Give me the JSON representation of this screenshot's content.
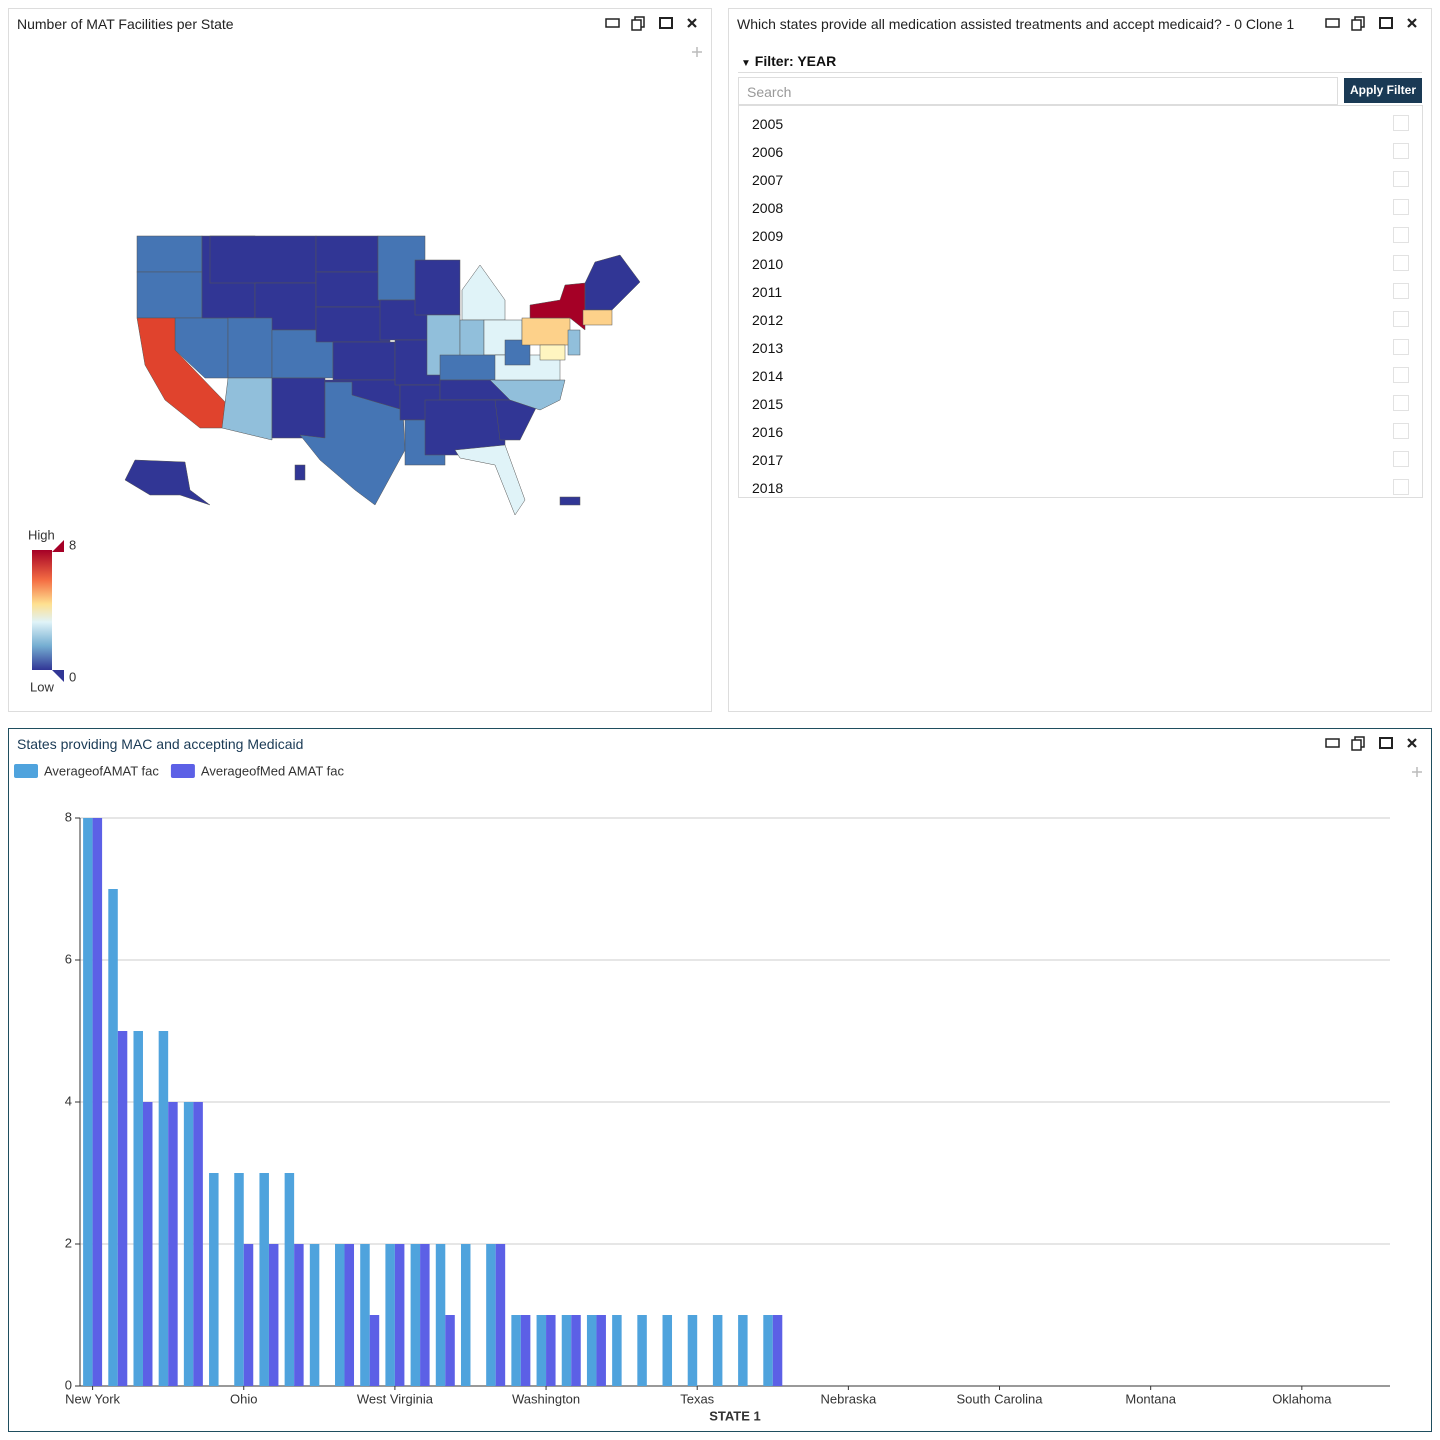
{
  "map_panel": {
    "title": "Number of MAT Facilities per State",
    "legend": {
      "high": "High",
      "max": "8",
      "low": "Low",
      "min": "0"
    }
  },
  "filter_panel": {
    "title": "Which states provide all medication assisted treatments and accept medicaid? - 0 Clone 1",
    "filter_label": "Filter: YEAR",
    "search_placeholder": "Search",
    "button": "Apply Filter",
    "years": [
      2005,
      2006,
      2007,
      2008,
      2009,
      2010,
      2011,
      2012,
      2013,
      2014,
      2015,
      2016,
      2017,
      2018
    ]
  },
  "chart_data": {
    "type": "bar",
    "title": "States providing MAC and accepting Medicaid",
    "x_label": "STATE 1",
    "categories": [
      "New York",
      null,
      null,
      null,
      null,
      null,
      "Ohio",
      null,
      null,
      null,
      null,
      null,
      "West Virginia",
      null,
      null,
      null,
      null,
      null,
      "Washington",
      null,
      null,
      null,
      null,
      null,
      "Texas",
      null,
      null,
      null,
      null,
      null,
      "Nebraska",
      null,
      null,
      null,
      null,
      null,
      "South Carolina",
      null,
      null,
      null,
      null,
      null,
      "Montana",
      null,
      null,
      null,
      null,
      null,
      "Oklahoma",
      null,
      null,
      null
    ],
    "series": [
      {
        "name": "AverageofAMAT fac",
        "color": "#4fa3dd",
        "values": [
          8,
          7,
          5,
          5,
          4,
          3,
          3,
          3,
          3,
          2,
          2,
          2,
          2,
          2,
          2,
          2,
          2,
          1,
          1,
          1,
          1,
          1,
          1,
          1,
          1,
          1,
          1,
          1,
          null,
          null,
          null,
          null,
          null,
          null,
          null,
          null,
          null,
          null,
          null,
          null,
          null,
          null,
          null,
          null,
          null,
          null,
          null,
          null,
          null,
          null,
          null,
          null
        ]
      },
      {
        "name": "AverageofMed AMAT fac",
        "color": "#5c60e6",
        "values": [
          8,
          5,
          4,
          4,
          4,
          null,
          2,
          2,
          2,
          null,
          2,
          1,
          2,
          2,
          1,
          null,
          2,
          1,
          1,
          1,
          1,
          null,
          null,
          null,
          null,
          null,
          null,
          1,
          null,
          null,
          null,
          null,
          null,
          null,
          null,
          null,
          null,
          null,
          null,
          null,
          null,
          null,
          null,
          null,
          null,
          null,
          null,
          null,
          null,
          null,
          null,
          null
        ]
      }
    ],
    "ylim": [
      0,
      8
    ],
    "yticks": [
      0,
      2,
      4,
      6,
      8
    ],
    "grid": true,
    "legend": "top-left"
  }
}
